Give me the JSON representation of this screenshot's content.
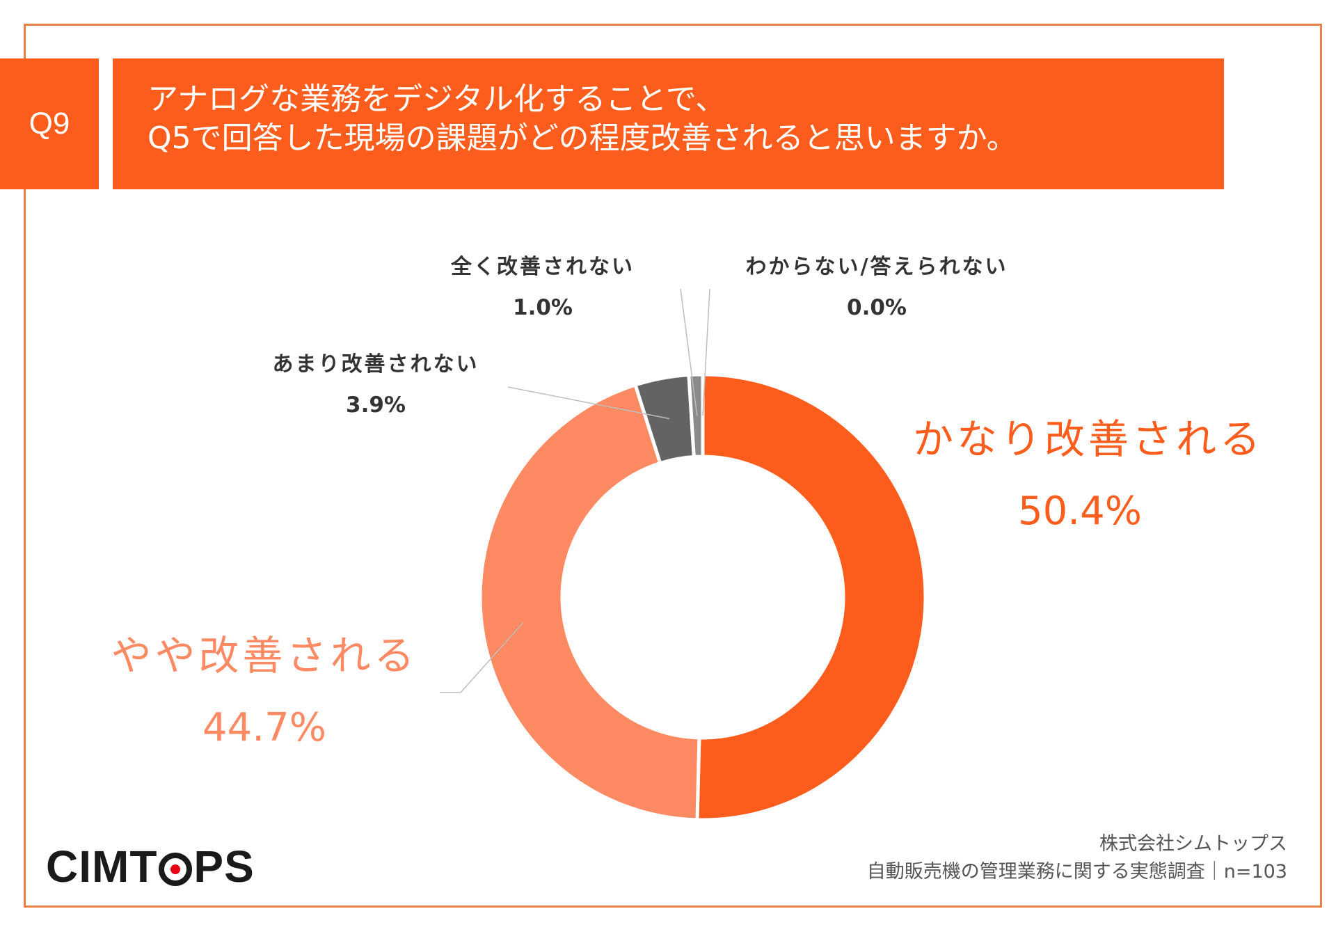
{
  "question": {
    "number": "Q9",
    "line1": "アナログな業務をデジタル化することで、",
    "line2": "Q5で回答した現場の課題がどの程度改善されると思いますか。"
  },
  "chart_data": {
    "type": "pie",
    "title": "",
    "slices": [
      {
        "label": "かなり改善される",
        "value": 50.4,
        "pct_label": "50.4%",
        "color": "#fd5d1c"
      },
      {
        "label": "やや改善される",
        "value": 44.7,
        "pct_label": "44.7%",
        "color": "#fe8a64"
      },
      {
        "label": "あまり改善されない",
        "value": 3.9,
        "pct_label": "3.9%",
        "color": "#636363"
      },
      {
        "label": "全く改善されない",
        "value": 1.0,
        "pct_label": "1.0%",
        "color": "#8a8a8a"
      },
      {
        "label": "わからない/答えられない",
        "value": 0.0,
        "pct_label": "0.0%",
        "color": "#bdbdbd"
      }
    ]
  },
  "colors": {
    "accent": "#fd5d1c",
    "accent_light": "#fe8a64",
    "frame": "#e8804a",
    "text_dark": "#333333"
  },
  "logo": {
    "before_o": "CIMT",
    "after_o": "PS"
  },
  "source": {
    "line1": "株式会社シムトップス",
    "line2": "自動販売機の管理業務に関する実態調査｜n=103"
  }
}
